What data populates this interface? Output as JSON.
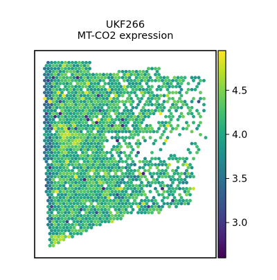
{
  "chart_data": {
    "type": "scatter",
    "title_line1": "UKF266",
    "title_line2": "MT-CO2 expression",
    "xlabel": "",
    "ylabel": "",
    "colormap": "viridis",
    "colorbar": {
      "range": [
        2.6,
        4.95
      ],
      "ticks": [
        3.0,
        3.5,
        4.0,
        4.5
      ],
      "tick_labels": [
        "3.0",
        "3.5",
        "4.0",
        "4.5"
      ]
    },
    "spot_layout": "hexagonal spatial transcriptomics grid",
    "value_distribution": {
      "typical_range": [
        3.7,
        4.5
      ],
      "min": 2.7,
      "max": 4.9
    },
    "colors": {
      "axis": "#000000",
      "background": "#ffffff"
    }
  }
}
